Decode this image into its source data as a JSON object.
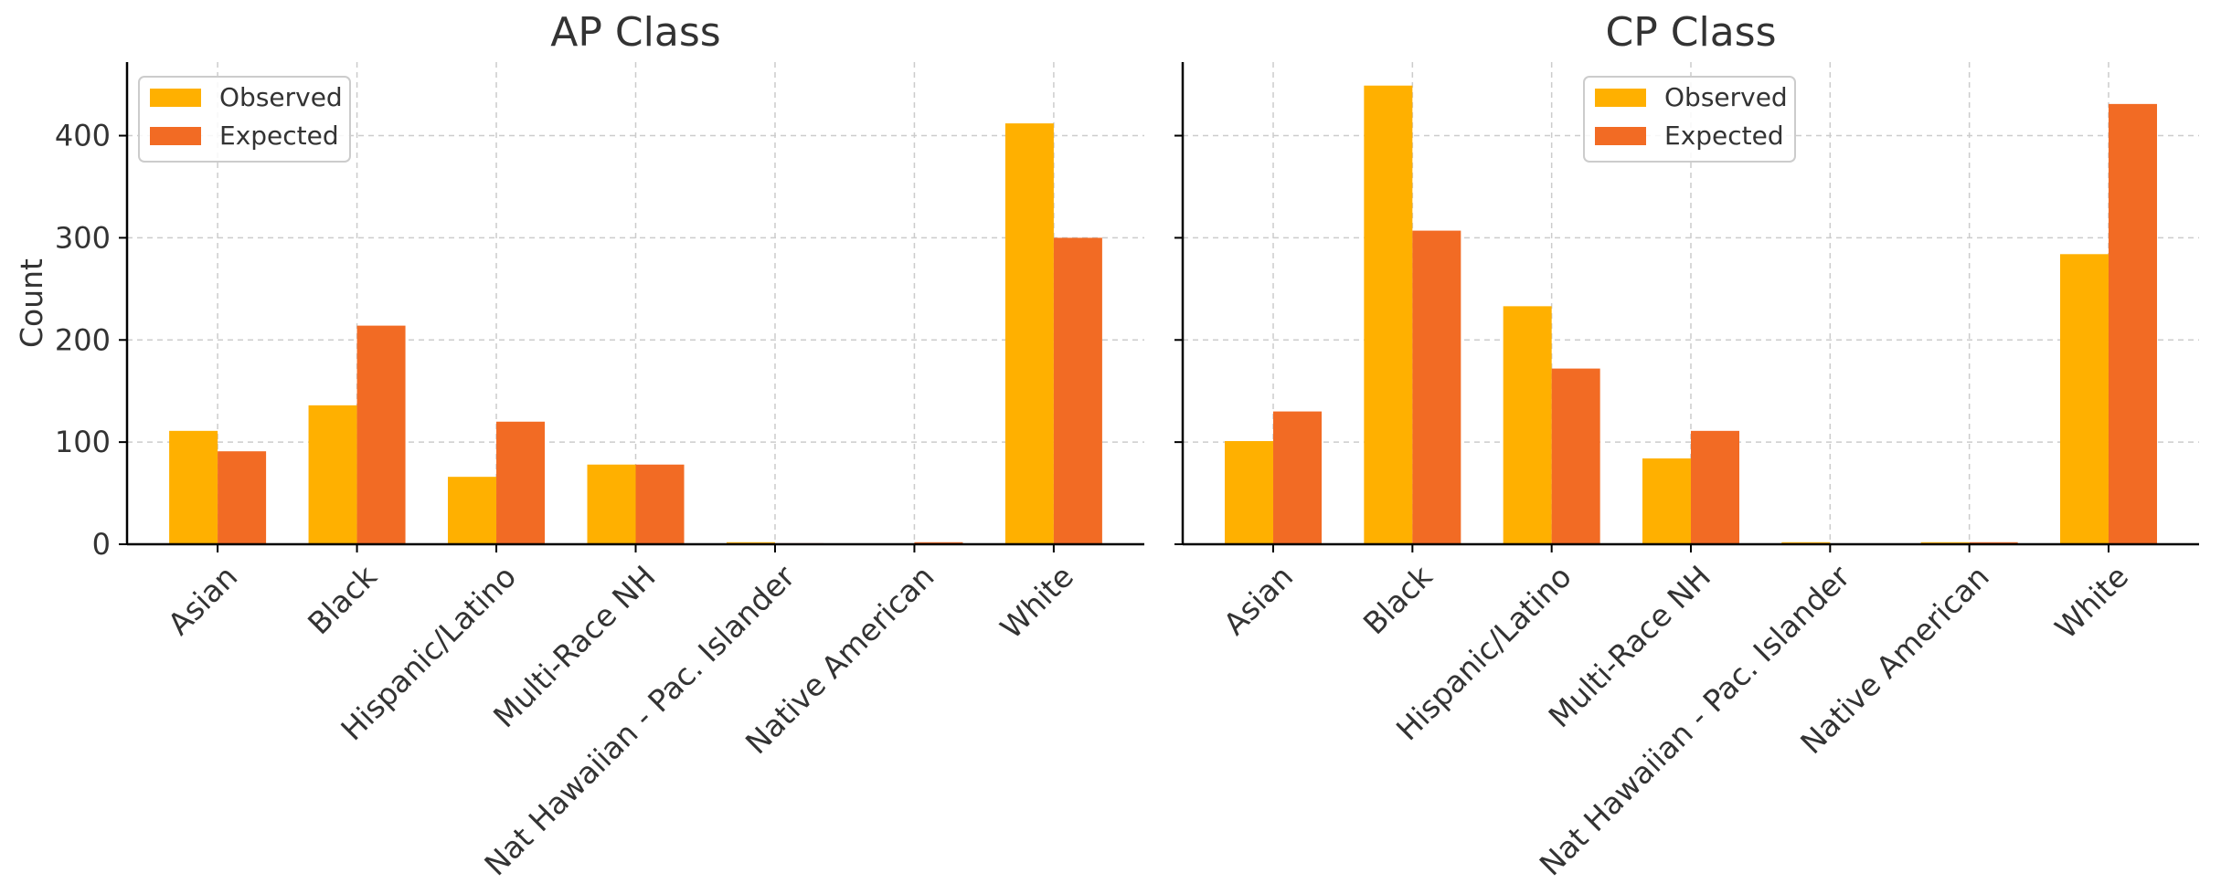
{
  "colors": {
    "observed": "#FFB000",
    "expected": "#F26B24",
    "grid": "#cccccc",
    "axis": "#000000",
    "text": "#333333"
  },
  "chart_data": [
    {
      "type": "bar",
      "title": "AP Class",
      "xlabel": "",
      "ylabel": "Count",
      "ylim": [
        0,
        472
      ],
      "yticks": [
        0,
        100,
        200,
        300,
        400
      ],
      "grid": true,
      "legend_position": "top-left",
      "categories": [
        "Asian",
        "Black",
        "Hispanic/Latino",
        "Multi-Race NH",
        "Nat Hawaiian - Pac. Islander",
        "Native American",
        "White"
      ],
      "series": [
        {
          "name": "Observed",
          "values": [
            111,
            136,
            66,
            78,
            2,
            0,
            412
          ]
        },
        {
          "name": "Expected",
          "values": [
            91,
            214,
            120,
            78,
            1,
            2,
            300
          ]
        }
      ]
    },
    {
      "type": "bar",
      "title": "CP Class",
      "xlabel": "",
      "ylabel": "",
      "ylim": [
        0,
        472
      ],
      "yticks": [
        0,
        100,
        200,
        300,
        400
      ],
      "grid": true,
      "legend_position": "top-center",
      "categories": [
        "Asian",
        "Black",
        "Hispanic/Latino",
        "Multi-Race NH",
        "Nat Hawaiian - Pac. Islander",
        "Native American",
        "White"
      ],
      "series": [
        {
          "name": "Observed",
          "values": [
            101,
            449,
            233,
            84,
            2,
            2,
            284
          ]
        },
        {
          "name": "Expected",
          "values": [
            130,
            307,
            172,
            111,
            0,
            2,
            431
          ]
        }
      ]
    }
  ]
}
